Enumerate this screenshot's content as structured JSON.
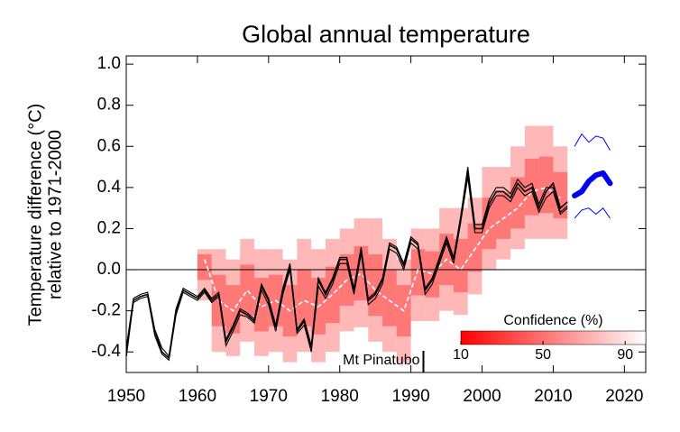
{
  "chart_data": {
    "type": "line",
    "title": "Global annual temperature",
    "ylabel": [
      "Temperature difference (°C)",
      "relative to 1971-2000"
    ],
    "xlim": [
      1950,
      2023
    ],
    "ylim": [
      -0.5,
      1.04
    ],
    "xticks": [
      1950,
      1960,
      1970,
      1980,
      1990,
      2000,
      2010,
      2020
    ],
    "yticks": [
      {
        "value": 1.0,
        "label": "1.0"
      },
      0.8,
      0.6,
      0.4,
      0.2,
      {
        "value": 0.0,
        "label": "0.0"
      },
      -0.2,
      -0.4
    ],
    "zero_line": true,
    "observations": {
      "color": "#000000",
      "x": [
        1950,
        1951,
        1952,
        1953,
        1954,
        1955,
        1956,
        1957,
        1958,
        1959,
        1960,
        1961,
        1962,
        1963,
        1964,
        1965,
        1966,
        1967,
        1968,
        1969,
        1970,
        1971,
        1972,
        1973,
        1974,
        1975,
        1976,
        1977,
        1978,
        1979,
        1980,
        1981,
        1982,
        1983,
        1984,
        1985,
        1986,
        1987,
        1988,
        1989,
        1990,
        1991,
        1992,
        1993,
        1994,
        1995,
        1996,
        1997,
        1998,
        1999,
        2000,
        2001,
        2002,
        2003,
        2004,
        2005,
        2006,
        2007,
        2008,
        2009,
        2010,
        2011,
        2012
      ],
      "series": [
        {
          "values": [
            -0.42,
            -0.15,
            -0.13,
            -0.12,
            -0.3,
            -0.4,
            -0.43,
            -0.2,
            -0.1,
            -0.12,
            -0.14,
            -0.1,
            -0.15,
            -0.12,
            -0.35,
            -0.28,
            -0.2,
            -0.22,
            -0.25,
            -0.08,
            -0.15,
            -0.28,
            -0.1,
            0.02,
            -0.3,
            -0.25,
            -0.38,
            -0.05,
            -0.12,
            -0.05,
            0.05,
            0.05,
            -0.1,
            0.1,
            -0.15,
            -0.12,
            -0.05,
            0.12,
            0.1,
            0.02,
            0.15,
            0.12,
            -0.1,
            -0.05,
            0.05,
            0.15,
            0.05,
            0.25,
            0.48,
            0.2,
            0.2,
            0.32,
            0.38,
            0.38,
            0.35,
            0.42,
            0.38,
            0.4,
            0.3,
            0.38,
            0.42,
            0.3,
            0.33
          ]
        },
        {
          "values": [
            -0.4,
            -0.16,
            -0.14,
            -0.13,
            -0.32,
            -0.41,
            -0.44,
            -0.22,
            -0.11,
            -0.13,
            -0.15,
            -0.11,
            -0.16,
            -0.13,
            -0.37,
            -0.3,
            -0.22,
            -0.23,
            -0.26,
            -0.1,
            -0.17,
            -0.3,
            -0.12,
            0.0,
            -0.31,
            -0.27,
            -0.4,
            -0.08,
            -0.14,
            -0.07,
            0.03,
            0.03,
            -0.12,
            0.08,
            -0.17,
            -0.14,
            -0.07,
            0.1,
            0.08,
            0.0,
            0.13,
            0.1,
            -0.12,
            -0.07,
            0.03,
            0.13,
            0.03,
            0.23,
            0.45,
            0.18,
            0.18,
            0.3,
            0.36,
            0.36,
            0.33,
            0.4,
            0.36,
            0.38,
            0.28,
            0.35,
            0.38,
            0.27,
            0.3
          ]
        },
        {
          "values": [
            -0.38,
            -0.14,
            -0.12,
            -0.11,
            -0.29,
            -0.38,
            -0.42,
            -0.19,
            -0.09,
            -0.11,
            -0.13,
            -0.09,
            -0.14,
            -0.11,
            -0.34,
            -0.27,
            -0.19,
            -0.21,
            -0.24,
            -0.07,
            -0.14,
            -0.27,
            -0.09,
            0.03,
            -0.29,
            -0.24,
            -0.37,
            -0.04,
            -0.11,
            -0.04,
            0.06,
            0.06,
            -0.09,
            0.11,
            -0.14,
            -0.11,
            -0.04,
            0.13,
            0.11,
            0.03,
            0.16,
            0.13,
            -0.09,
            -0.04,
            0.06,
            0.16,
            0.06,
            0.26,
            0.5,
            0.22,
            0.22,
            0.34,
            0.4,
            0.4,
            0.37,
            0.44,
            0.4,
            0.42,
            0.32,
            0.4,
            0.4,
            0.28,
            0.31
          ]
        }
      ]
    },
    "hindcast": {
      "median_color": "#ffffff",
      "band_color": "#ff0000",
      "x": [
        1961,
        1963,
        1965,
        1967,
        1969,
        1971,
        1973,
        1975,
        1977,
        1979,
        1981,
        1983,
        1985,
        1987,
        1989,
        1991,
        1993,
        1995,
        1997,
        1999,
        2001,
        2003,
        2005,
        2007,
        2009,
        2011
      ],
      "median": [
        0.05,
        -0.15,
        -0.2,
        -0.1,
        -0.18,
        -0.15,
        -0.2,
        -0.15,
        -0.18,
        -0.12,
        -0.05,
        -0.02,
        -0.1,
        -0.15,
        -0.2,
        0.0,
        -0.02,
        0.05,
        0.0,
        0.1,
        0.2,
        0.25,
        0.3,
        0.38,
        0.4,
        0.35
      ],
      "lower": [
        -0.15,
        -0.4,
        -0.42,
        -0.35,
        -0.42,
        -0.4,
        -0.45,
        -0.4,
        -0.45,
        -0.4,
        -0.3,
        -0.28,
        -0.35,
        -0.4,
        -0.45,
        -0.25,
        -0.25,
        -0.2,
        -0.22,
        -0.12,
        0.0,
        0.05,
        0.1,
        0.15,
        0.15,
        0.15
      ],
      "upper": [
        0.1,
        0.1,
        0.05,
        0.15,
        0.1,
        0.1,
        0.05,
        0.15,
        0.1,
        0.15,
        0.2,
        0.25,
        0.25,
        0.15,
        0.05,
        0.2,
        0.2,
        0.3,
        0.3,
        0.35,
        0.5,
        0.5,
        0.6,
        0.7,
        0.7,
        0.6
      ]
    },
    "forecast": {
      "color": "#0000ee",
      "x": [
        2013,
        2014,
        2015,
        2016,
        2017,
        2018
      ],
      "median": [
        0.36,
        0.38,
        0.43,
        0.46,
        0.47,
        0.42
      ],
      "upper": [
        0.6,
        0.66,
        0.62,
        0.65,
        0.64,
        0.58
      ],
      "lower": [
        0.25,
        0.29,
        0.3,
        0.27,
        0.3,
        0.25
      ]
    },
    "colorbar": {
      "label": "Confidence (%)",
      "lim": [
        10,
        100
      ],
      "ticks": [
        10,
        50,
        90
      ],
      "colors": [
        "#ff0000",
        "#ffffff"
      ]
    },
    "annotation": {
      "text": "Mt Pinatubo",
      "x": 1991
    }
  }
}
